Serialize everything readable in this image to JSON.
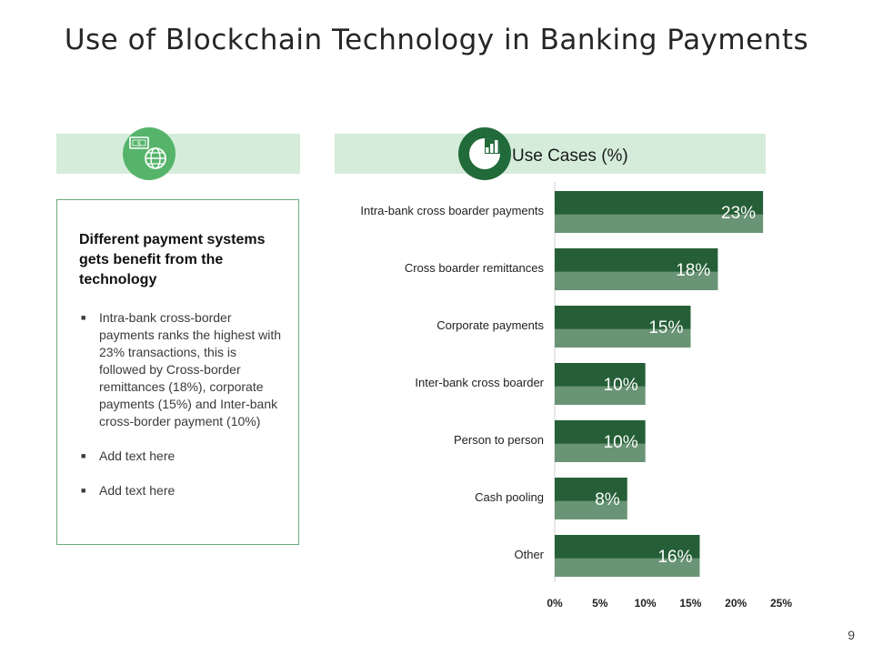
{
  "slide": {
    "title": "Use of Blockchain Technology in Banking Payments",
    "page_number": "9"
  },
  "left_panel": {
    "icon": "money-globe-icon",
    "heading": "Different payment systems gets benefit from the technology",
    "bullets": [
      "Intra-bank  cross-border payments  ranks  the highest with 23% transactions,  this is followed by Cross-border remittances (18%), corporate payments (15%) and Inter-bank  cross-border payment  (10%)",
      "Add text here",
      "Add text here"
    ]
  },
  "right_panel": {
    "icon": "bar-pie-chart-icon",
    "label": "Use Cases (%)"
  },
  "colors": {
    "band": "#d4ecd9",
    "bar_top": "#265f37",
    "bar_bottom": "#6a9476",
    "icon_light": "#55b46a",
    "icon_dark": "#216a39"
  },
  "chart_data": {
    "type": "bar",
    "orientation": "horizontal",
    "categories": [
      "Intra-bank cross boarder payments",
      "Cross boarder remittances",
      "Corporate payments",
      "Inter-bank cross boarder",
      "Person to person",
      "Cash pooling",
      "Other"
    ],
    "values": [
      23,
      18,
      15,
      10,
      10,
      8,
      16
    ],
    "data_labels": [
      "23%",
      "18%",
      "15%",
      "10%",
      "10%",
      "8%",
      "16%"
    ],
    "x_ticks": [
      "0%",
      "5%",
      "10%",
      "15%",
      "20%",
      "25%"
    ],
    "xlim": [
      0,
      25
    ],
    "grid": false,
    "legend": "none"
  }
}
